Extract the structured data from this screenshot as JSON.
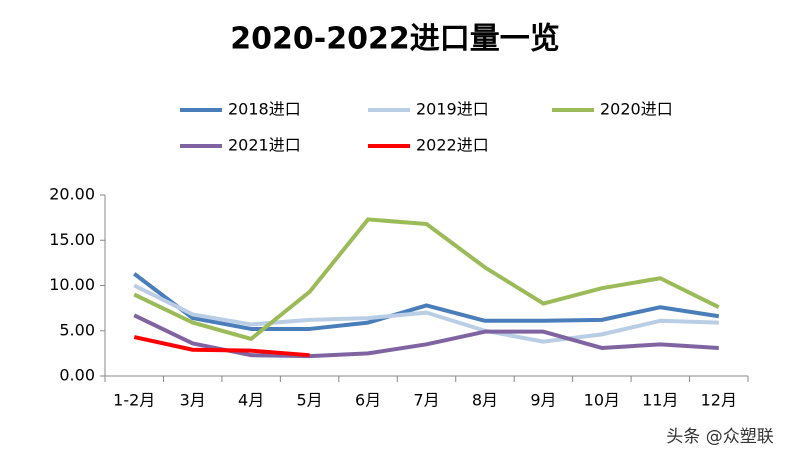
{
  "chart_data": {
    "type": "line",
    "title": "2020-2022进口量一览",
    "categories": [
      "1-2月",
      "3月",
      "4月",
      "5月",
      "6月",
      "7月",
      "8月",
      "9月",
      "10月",
      "11月",
      "12月"
    ],
    "series": [
      {
        "name": "2018进口",
        "color": "#4a7ebb",
        "values": [
          11.3,
          6.4,
          5.2,
          5.2,
          5.9,
          7.8,
          6.1,
          6.1,
          6.2,
          7.6,
          6.6
        ]
      },
      {
        "name": "2019进口",
        "color": "#b9cde5",
        "values": [
          10.0,
          6.8,
          5.7,
          6.2,
          6.4,
          7.0,
          5.0,
          3.8,
          4.6,
          6.1,
          5.9
        ]
      },
      {
        "name": "2020进口",
        "color": "#9bbb59",
        "values": [
          9.0,
          5.9,
          4.1,
          9.3,
          17.3,
          16.8,
          12.0,
          8.0,
          9.7,
          10.8,
          7.6
        ]
      },
      {
        "name": "2021进口",
        "color": "#8064a2",
        "values": [
          6.7,
          3.6,
          2.3,
          2.2,
          2.5,
          3.5,
          4.9,
          4.9,
          3.1,
          3.5,
          3.1
        ]
      },
      {
        "name": "2022进口",
        "color": "#ff0000",
        "values": [
          4.3,
          2.9,
          2.8,
          2.3,
          null,
          null,
          null,
          null,
          null,
          null,
          null
        ]
      }
    ],
    "ylim": [
      0,
      20
    ],
    "yticks": [
      {
        "value": 0,
        "label": "0.00"
      },
      {
        "value": 5,
        "label": "5.00"
      },
      {
        "value": 10,
        "label": "10.00"
      },
      {
        "value": 15,
        "label": "15.00"
      },
      {
        "value": 20,
        "label": "20.00"
      }
    ],
    "grid": false
  },
  "watermark": "头条 @众塑联"
}
